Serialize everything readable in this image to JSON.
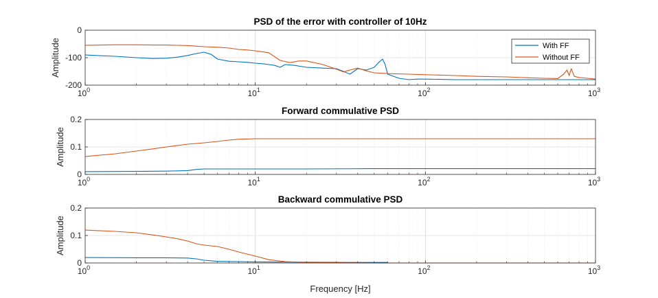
{
  "chart_data": [
    {
      "type": "line",
      "title": "PSD of the error with controller of 10Hz",
      "ylabel": "Amplitude",
      "xlabel": "",
      "xscale": "log",
      "xlim": [
        1,
        1000
      ],
      "ylim": [
        -200,
        0
      ],
      "yticks": [
        0,
        -100,
        -200
      ],
      "ytick_labels": [
        "0",
        "-100",
        "-200"
      ],
      "xtick_labels": [
        "10^0",
        "10^1",
        "10^2",
        "10^3"
      ],
      "grid": true,
      "legend": {
        "position": "top-right",
        "entries": [
          "With FF",
          "Without FF"
        ]
      },
      "series": [
        {
          "name": "With FF",
          "color": "#0072BD",
          "x": [
            1,
            1.5,
            2,
            2.5,
            3,
            3.5,
            4,
            4.5,
            5,
            5.5,
            6,
            7,
            8,
            9,
            10,
            11,
            12,
            13,
            14,
            15,
            17,
            20,
            25,
            30,
            33,
            36,
            40,
            45,
            50,
            53,
            56,
            58,
            60,
            70,
            80,
            90,
            100,
            150,
            200,
            300,
            400,
            500,
            600,
            700,
            800,
            900,
            1000
          ],
          "values": [
            -90,
            -95,
            -100,
            -103,
            -102,
            -98,
            -92,
            -85,
            -80,
            -88,
            -105,
            -113,
            -115,
            -117,
            -120,
            -122,
            -125,
            -128,
            -135,
            -125,
            -128,
            -135,
            -138,
            -140,
            -150,
            -160,
            -140,
            -145,
            -135,
            -118,
            -105,
            -125,
            -160,
            -175,
            -180,
            -178,
            -178,
            -180,
            -180,
            -180,
            -180,
            -180,
            -180,
            -180,
            -180,
            -180,
            -180
          ]
        },
        {
          "name": "Without FF",
          "color": "#D95319",
          "x": [
            1,
            1.5,
            2,
            2.5,
            3,
            3.5,
            4,
            4.5,
            5,
            6,
            7,
            8,
            9,
            10,
            12,
            14,
            16,
            18,
            20,
            25,
            30,
            33,
            36,
            40,
            45,
            50,
            60,
            80,
            100,
            150,
            200,
            300,
            400,
            500,
            600,
            650,
            680,
            700,
            720,
            750,
            800,
            900,
            1000
          ],
          "values": [
            -55,
            -53,
            -53,
            -54,
            -54,
            -55,
            -56,
            -58,
            -60,
            -62,
            -65,
            -70,
            -72,
            -75,
            -82,
            -110,
            -118,
            -112,
            -112,
            -125,
            -142,
            -152,
            -145,
            -138,
            -148,
            -155,
            -158,
            -160,
            -162,
            -165,
            -168,
            -170,
            -173,
            -175,
            -176,
            -160,
            -145,
            -165,
            -140,
            -168,
            -172,
            -175,
            -178
          ]
        }
      ]
    },
    {
      "type": "line",
      "title": "Forward commulative PSD",
      "ylabel": "Amplitude",
      "xlabel": "",
      "xscale": "log",
      "xlim": [
        1,
        1000
      ],
      "ylim": [
        0,
        0.2
      ],
      "yticks": [
        0,
        0.1,
        0.2
      ],
      "ytick_labels": [
        "0",
        "0.1",
        "0.2"
      ],
      "xtick_labels": [
        "10^0",
        "10^1",
        "10^2",
        "10^3"
      ],
      "grid": true,
      "series": [
        {
          "color": "#0072BD",
          "x": [
            1,
            2,
            3,
            4,
            4.5,
            5,
            6,
            8,
            10,
            20,
            50,
            100,
            1000
          ],
          "values": [
            0.01,
            0.011,
            0.012,
            0.014,
            0.018,
            0.02,
            0.02,
            0.02,
            0.02,
            0.02,
            0.021,
            0.021,
            0.021
          ]
        },
        {
          "color": "#D95319",
          "x": [
            1,
            1.5,
            2,
            2.5,
            3,
            4,
            5,
            6,
            7,
            8,
            10,
            15,
            20,
            50,
            100,
            1000
          ],
          "values": [
            0.065,
            0.075,
            0.085,
            0.093,
            0.1,
            0.11,
            0.115,
            0.12,
            0.125,
            0.128,
            0.13,
            0.13,
            0.13,
            0.13,
            0.13,
            0.13
          ]
        }
      ]
    },
    {
      "type": "line",
      "title": "Backward commulative PSD",
      "ylabel": "Amplitude",
      "xlabel": "Frequency [Hz]",
      "xscale": "log",
      "xlim": [
        1,
        1000
      ],
      "ylim": [
        0,
        0.2
      ],
      "yticks": [
        0,
        0.1,
        0.2
      ],
      "ytick_labels": [
        "0",
        "0.1",
        "0.2"
      ],
      "xtick_labels": [
        "10^0",
        "10^1",
        "10^2",
        "10^3"
      ],
      "grid": true,
      "series": [
        {
          "color": "#0072BD",
          "x": [
            1,
            2,
            3,
            4,
            4.5,
            5,
            6,
            8,
            10,
            20,
            40,
            60
          ],
          "values": [
            0.02,
            0.019,
            0.019,
            0.018,
            0.015,
            0.01,
            0.006,
            0.005,
            0.004,
            0.003,
            0.002,
            0.002
          ]
        },
        {
          "color": "#D95319",
          "x": [
            1,
            1.5,
            2,
            2.5,
            3,
            3.5,
            4,
            4.5,
            5,
            6,
            7,
            8,
            10,
            12,
            15,
            20,
            30,
            50,
            100,
            1000
          ],
          "values": [
            0.12,
            0.115,
            0.11,
            0.102,
            0.095,
            0.088,
            0.08,
            0.07,
            0.065,
            0.06,
            0.05,
            0.04,
            0.025,
            0.012,
            0.005,
            0.002,
            0.001,
            0,
            0,
            0
          ]
        }
      ]
    }
  ]
}
